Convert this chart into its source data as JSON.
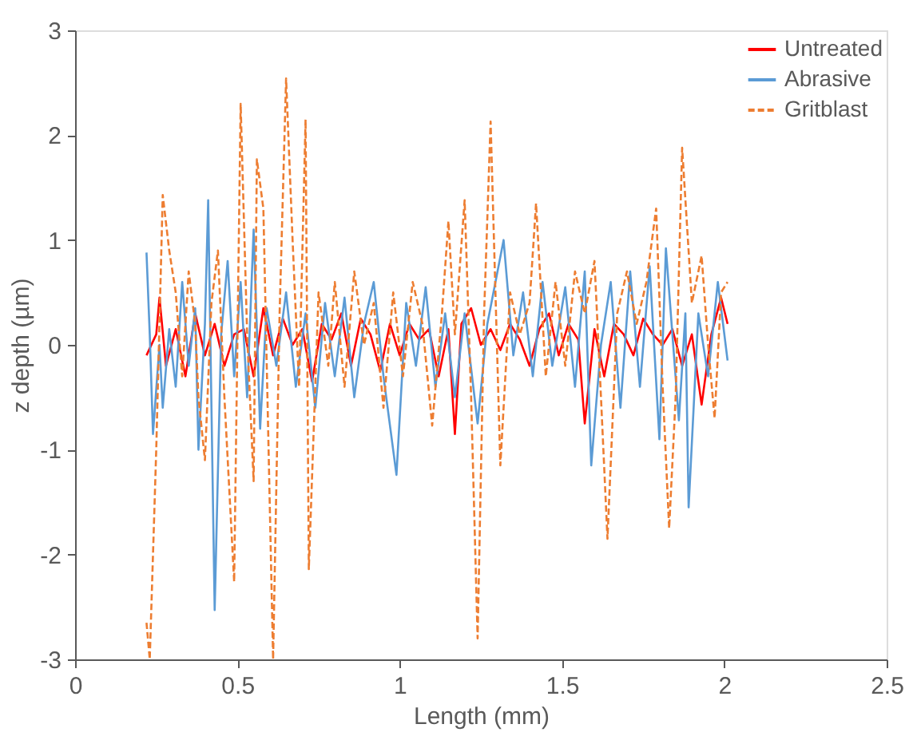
{
  "chart_data": {
    "type": "line",
    "xlabel": "Length (mm)",
    "ylabel": "z depth (µm)",
    "xlim": [
      0,
      2.5
    ],
    "xticks": [
      0,
      0.5,
      1,
      1.5,
      2,
      2.5
    ],
    "ylim": [
      -3,
      3
    ],
    "yticks": [
      -3,
      -2,
      -1,
      0,
      1,
      2,
      3
    ],
    "grid": false,
    "legend": "top right",
    "marker": "none",
    "series": [
      {
        "name": "Untreated",
        "color": "#ff0000",
        "line_style": "solid",
        "x": [
          0.22,
          0.25,
          0.26,
          0.28,
          0.31,
          0.34,
          0.37,
          0.4,
          0.43,
          0.46,
          0.49,
          0.52,
          0.55,
          0.58,
          0.61,
          0.64,
          0.67,
          0.7,
          0.73,
          0.76,
          0.79,
          0.82,
          0.85,
          0.88,
          0.91,
          0.94,
          0.97,
          1.0,
          1.03,
          1.06,
          1.09,
          1.12,
          1.15,
          1.17,
          1.19,
          1.22,
          1.25,
          1.28,
          1.31,
          1.34,
          1.37,
          1.4,
          1.43,
          1.46,
          1.49,
          1.52,
          1.55,
          1.57,
          1.6,
          1.63,
          1.66,
          1.69,
          1.72,
          1.75,
          1.78,
          1.81,
          1.84,
          1.87,
          1.9,
          1.93,
          1.96,
          1.99,
          2.01
        ],
        "values": [
          -0.1,
          0.1,
          0.45,
          -0.2,
          0.15,
          -0.3,
          0.3,
          -0.1,
          0.2,
          -0.2,
          0.1,
          0.15,
          -0.3,
          0.35,
          -0.1,
          0.25,
          0.0,
          0.15,
          -0.35,
          0.2,
          0.05,
          0.3,
          -0.2,
          0.25,
          0.1,
          -0.25,
          0.2,
          -0.1,
          0.2,
          0.05,
          0.15,
          -0.3,
          0.15,
          -0.85,
          0.2,
          0.35,
          0.0,
          0.15,
          -0.05,
          0.2,
          0.05,
          -0.2,
          0.15,
          0.3,
          -0.1,
          0.2,
          0.05,
          -0.75,
          0.15,
          -0.3,
          0.2,
          0.1,
          -0.1,
          0.25,
          0.1,
          0.0,
          0.15,
          -0.2,
          0.1,
          -0.57,
          0.1,
          0.45,
          0.2
        ]
      },
      {
        "name": "Abrasive",
        "color": "#5b9bd5",
        "line_style": "solid",
        "x": [
          0.22,
          0.23,
          0.24,
          0.26,
          0.27,
          0.29,
          0.31,
          0.33,
          0.35,
          0.37,
          0.38,
          0.4,
          0.41,
          0.43,
          0.45,
          0.47,
          0.49,
          0.51,
          0.53,
          0.55,
          0.57,
          0.59,
          0.62,
          0.65,
          0.68,
          0.71,
          0.74,
          0.77,
          0.8,
          0.83,
          0.86,
          0.89,
          0.92,
          0.95,
          0.99,
          1.02,
          1.05,
          1.08,
          1.11,
          1.14,
          1.17,
          1.2,
          1.24,
          1.27,
          1.32,
          1.35,
          1.38,
          1.41,
          1.44,
          1.47,
          1.51,
          1.54,
          1.57,
          1.59,
          1.62,
          1.65,
          1.68,
          1.71,
          1.74,
          1.77,
          1.8,
          1.82,
          1.84,
          1.86,
          1.88,
          1.89,
          1.92,
          1.95,
          1.98,
          2.01
        ],
        "values": [
          0.88,
          0.1,
          -0.85,
          0.0,
          -0.6,
          0.15,
          -0.4,
          0.6,
          -0.2,
          0.35,
          -1.0,
          0.2,
          1.38,
          -2.53,
          0.1,
          0.8,
          -0.3,
          0.6,
          -0.5,
          1.1,
          -0.8,
          0.35,
          -0.2,
          0.5,
          -0.4,
          0.3,
          -0.6,
          0.4,
          -0.3,
          0.45,
          -0.5,
          0.2,
          0.6,
          -0.3,
          -1.24,
          0.4,
          -0.2,
          0.55,
          -0.4,
          0.3,
          -0.5,
          0.3,
          -0.75,
          0.2,
          1.0,
          -0.1,
          0.5,
          -0.3,
          0.6,
          -0.2,
          0.55,
          -0.4,
          0.7,
          -1.15,
          0.0,
          0.6,
          -0.6,
          0.7,
          -0.4,
          0.75,
          -0.9,
          0.92,
          0.1,
          -0.72,
          0.3,
          -1.55,
          0.3,
          -0.3,
          0.6,
          -0.15
        ]
      },
      {
        "name": "Gritblast",
        "color": "#ed7d31",
        "line_style": "dashed",
        "x": [
          0.22,
          0.23,
          0.25,
          0.27,
          0.29,
          0.31,
          0.33,
          0.35,
          0.37,
          0.38,
          0.4,
          0.42,
          0.44,
          0.46,
          0.49,
          0.51,
          0.53,
          0.55,
          0.56,
          0.58,
          0.61,
          0.63,
          0.65,
          0.67,
          0.69,
          0.71,
          0.72,
          0.75,
          0.78,
          0.8,
          0.83,
          0.86,
          0.89,
          0.92,
          0.95,
          0.98,
          1.01,
          1.04,
          1.07,
          1.1,
          1.13,
          1.15,
          1.17,
          1.2,
          1.22,
          1.24,
          1.26,
          1.28,
          1.31,
          1.34,
          1.37,
          1.4,
          1.42,
          1.45,
          1.48,
          1.51,
          1.54,
          1.57,
          1.6,
          1.62,
          1.64,
          1.67,
          1.7,
          1.73,
          1.76,
          1.79,
          1.81,
          1.83,
          1.85,
          1.87,
          1.9,
          1.93,
          1.95,
          1.97,
          1.99,
          2.01
        ],
        "values": [
          -2.65,
          -3.0,
          -1.0,
          1.43,
          0.9,
          0.5,
          -0.3,
          0.7,
          0.2,
          -0.5,
          -1.1,
          0.4,
          0.9,
          -0.5,
          -2.26,
          2.3,
          0.1,
          -1.3,
          1.77,
          1.3,
          -3.0,
          0.3,
          2.54,
          1.0,
          -0.4,
          2.15,
          -2.14,
          0.5,
          -0.2,
          0.6,
          -0.4,
          0.7,
          0.0,
          0.4,
          -0.6,
          0.5,
          -0.3,
          0.6,
          0.2,
          -0.77,
          0.3,
          1.18,
          0.1,
          1.38,
          -0.5,
          -2.8,
          0.3,
          2.13,
          -1.15,
          0.5,
          0.1,
          0.4,
          1.35,
          -0.3,
          0.6,
          -0.2,
          0.7,
          0.3,
          0.8,
          -0.5,
          -1.85,
          0.3,
          0.7,
          0.2,
          0.6,
          1.3,
          -0.4,
          -1.75,
          -0.5,
          1.88,
          0.4,
          0.85,
          0.0,
          -0.7,
          0.5,
          0.6
        ]
      }
    ]
  }
}
